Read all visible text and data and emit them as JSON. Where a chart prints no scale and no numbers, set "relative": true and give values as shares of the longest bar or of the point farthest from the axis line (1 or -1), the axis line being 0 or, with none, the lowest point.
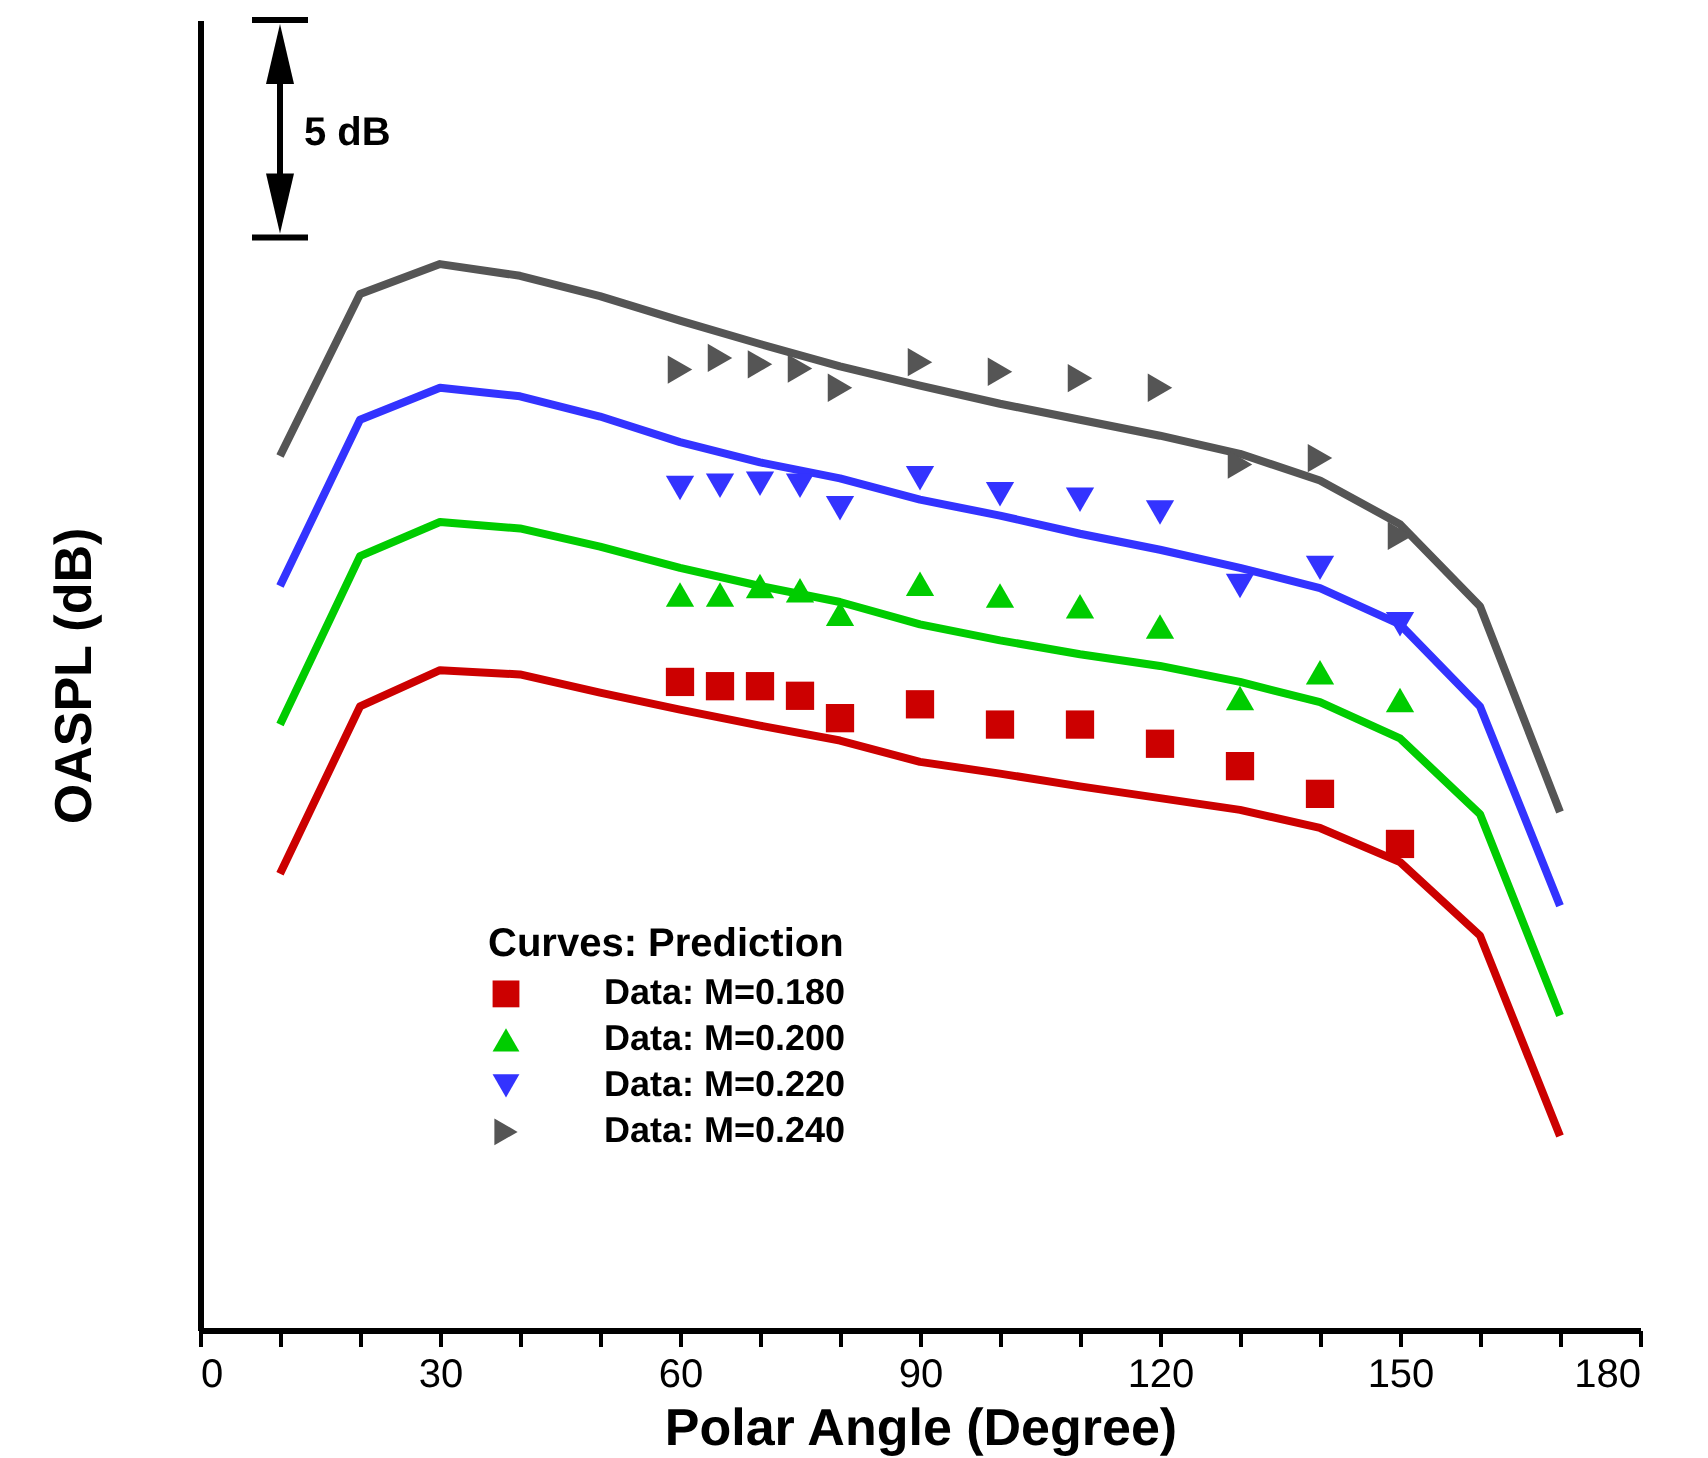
{
  "chart_data": {
    "type": "line",
    "relative": true,
    "xlabel": "Polar Angle (Degree)",
    "ylabel": "OASPL (dB)",
    "legend_title": "Curves: Prediction",
    "legend": "bottom",
    "annotations": [
      "5 dB"
    ],
    "xlim": [
      0,
      180
    ],
    "xticks": [
      0,
      {
        "value": 10,
        "label": null
      },
      {
        "value": 20,
        "label": null
      },
      30,
      {
        "value": 40,
        "label": null
      },
      {
        "value": 50,
        "label": null
      },
      60,
      {
        "value": 70,
        "label": null
      },
      {
        "value": 80,
        "label": null
      },
      90,
      {
        "value": 100,
        "label": null
      },
      {
        "value": 110,
        "label": null
      },
      120,
      {
        "value": 130,
        "label": null
      },
      {
        "value": 140,
        "label": null
      },
      150,
      {
        "value": 160,
        "label": null
      },
      {
        "value": 170,
        "label": null
      },
      180
    ],
    "series": [
      {
        "type": "line",
        "color": "#cc0000",
        "x": [
          10,
          20,
          30,
          40,
          50,
          60,
          70,
          80,
          90,
          100,
          110,
          120,
          130,
          140,
          150,
          160,
          170
        ],
        "values": [
          0.428,
          0.585,
          0.619,
          0.615,
          0.598,
          0.582,
          0.567,
          0.553,
          0.533,
          0.522,
          0.51,
          0.499,
          0.488,
          0.471,
          0.439,
          0.37,
          0.182
        ]
      },
      {
        "type": "line",
        "color": "#00cc00",
        "x": [
          10,
          20,
          30,
          40,
          50,
          60,
          70,
          80,
          90,
          100,
          110,
          120,
          130,
          140,
          150,
          160,
          170
        ],
        "values": [
          0.568,
          0.726,
          0.758,
          0.752,
          0.735,
          0.715,
          0.698,
          0.683,
          0.662,
          0.647,
          0.634,
          0.623,
          0.608,
          0.589,
          0.555,
          0.484,
          0.295
        ]
      },
      {
        "type": "line",
        "color": "#3333ff",
        "x": [
          10,
          20,
          30,
          40,
          50,
          60,
          70,
          80,
          90,
          100,
          110,
          120,
          130,
          140,
          150,
          160,
          170
        ],
        "values": [
          0.698,
          0.854,
          0.884,
          0.876,
          0.857,
          0.833,
          0.814,
          0.799,
          0.779,
          0.764,
          0.747,
          0.732,
          0.715,
          0.696,
          0.662,
          0.585,
          0.398
        ]
      },
      {
        "type": "line",
        "color": "#555555",
        "x": [
          10,
          20,
          30,
          40,
          50,
          60,
          70,
          80,
          90,
          100,
          110,
          120,
          130,
          140,
          150,
          160,
          170
        ],
        "values": [
          0.82,
          0.972,
          1.0,
          0.989,
          0.97,
          0.947,
          0.925,
          0.904,
          0.886,
          0.869,
          0.854,
          0.839,
          0.822,
          0.797,
          0.756,
          0.679,
          0.486
        ]
      },
      {
        "type": "scatter",
        "name": "Data: M=0.180",
        "color": "#cc0000",
        "marker": "square",
        "x": [
          60,
          65,
          70,
          75,
          80,
          90,
          100,
          110,
          120,
          130,
          140,
          150
        ],
        "values": [
          0.608,
          0.604,
          0.604,
          0.595,
          0.574,
          0.587,
          0.568,
          0.568,
          0.55,
          0.529,
          0.503,
          0.456
        ]
      },
      {
        "type": "scatter",
        "name": "Data: M=0.200",
        "color": "#00cc00",
        "marker": "triangle-up",
        "x": [
          60,
          65,
          70,
          75,
          80,
          90,
          100,
          110,
          120,
          130,
          140,
          150
        ],
        "values": [
          0.69,
          0.69,
          0.698,
          0.694,
          0.672,
          0.7,
          0.689,
          0.679,
          0.66,
          0.593,
          0.617,
          0.591
        ]
      },
      {
        "type": "scatter",
        "name": "Data: M=0.220",
        "color": "#3333ff",
        "marker": "triangle-down",
        "x": [
          60,
          65,
          70,
          75,
          80,
          90,
          100,
          110,
          120,
          130,
          140,
          150
        ],
        "values": [
          0.79,
          0.792,
          0.794,
          0.792,
          0.771,
          0.799,
          0.784,
          0.779,
          0.767,
          0.698,
          0.715,
          0.662
        ]
      },
      {
        "type": "scatter",
        "name": "Data: M=0.240",
        "color": "#555555",
        "marker": "triangle-right",
        "x": [
          60,
          65,
          70,
          75,
          80,
          90,
          100,
          110,
          120,
          130,
          140,
          150
        ],
        "values": [
          0.901,
          0.912,
          0.906,
          0.902,
          0.884,
          0.908,
          0.899,
          0.893,
          0.884,
          0.812,
          0.818,
          0.745
        ]
      }
    ]
  }
}
